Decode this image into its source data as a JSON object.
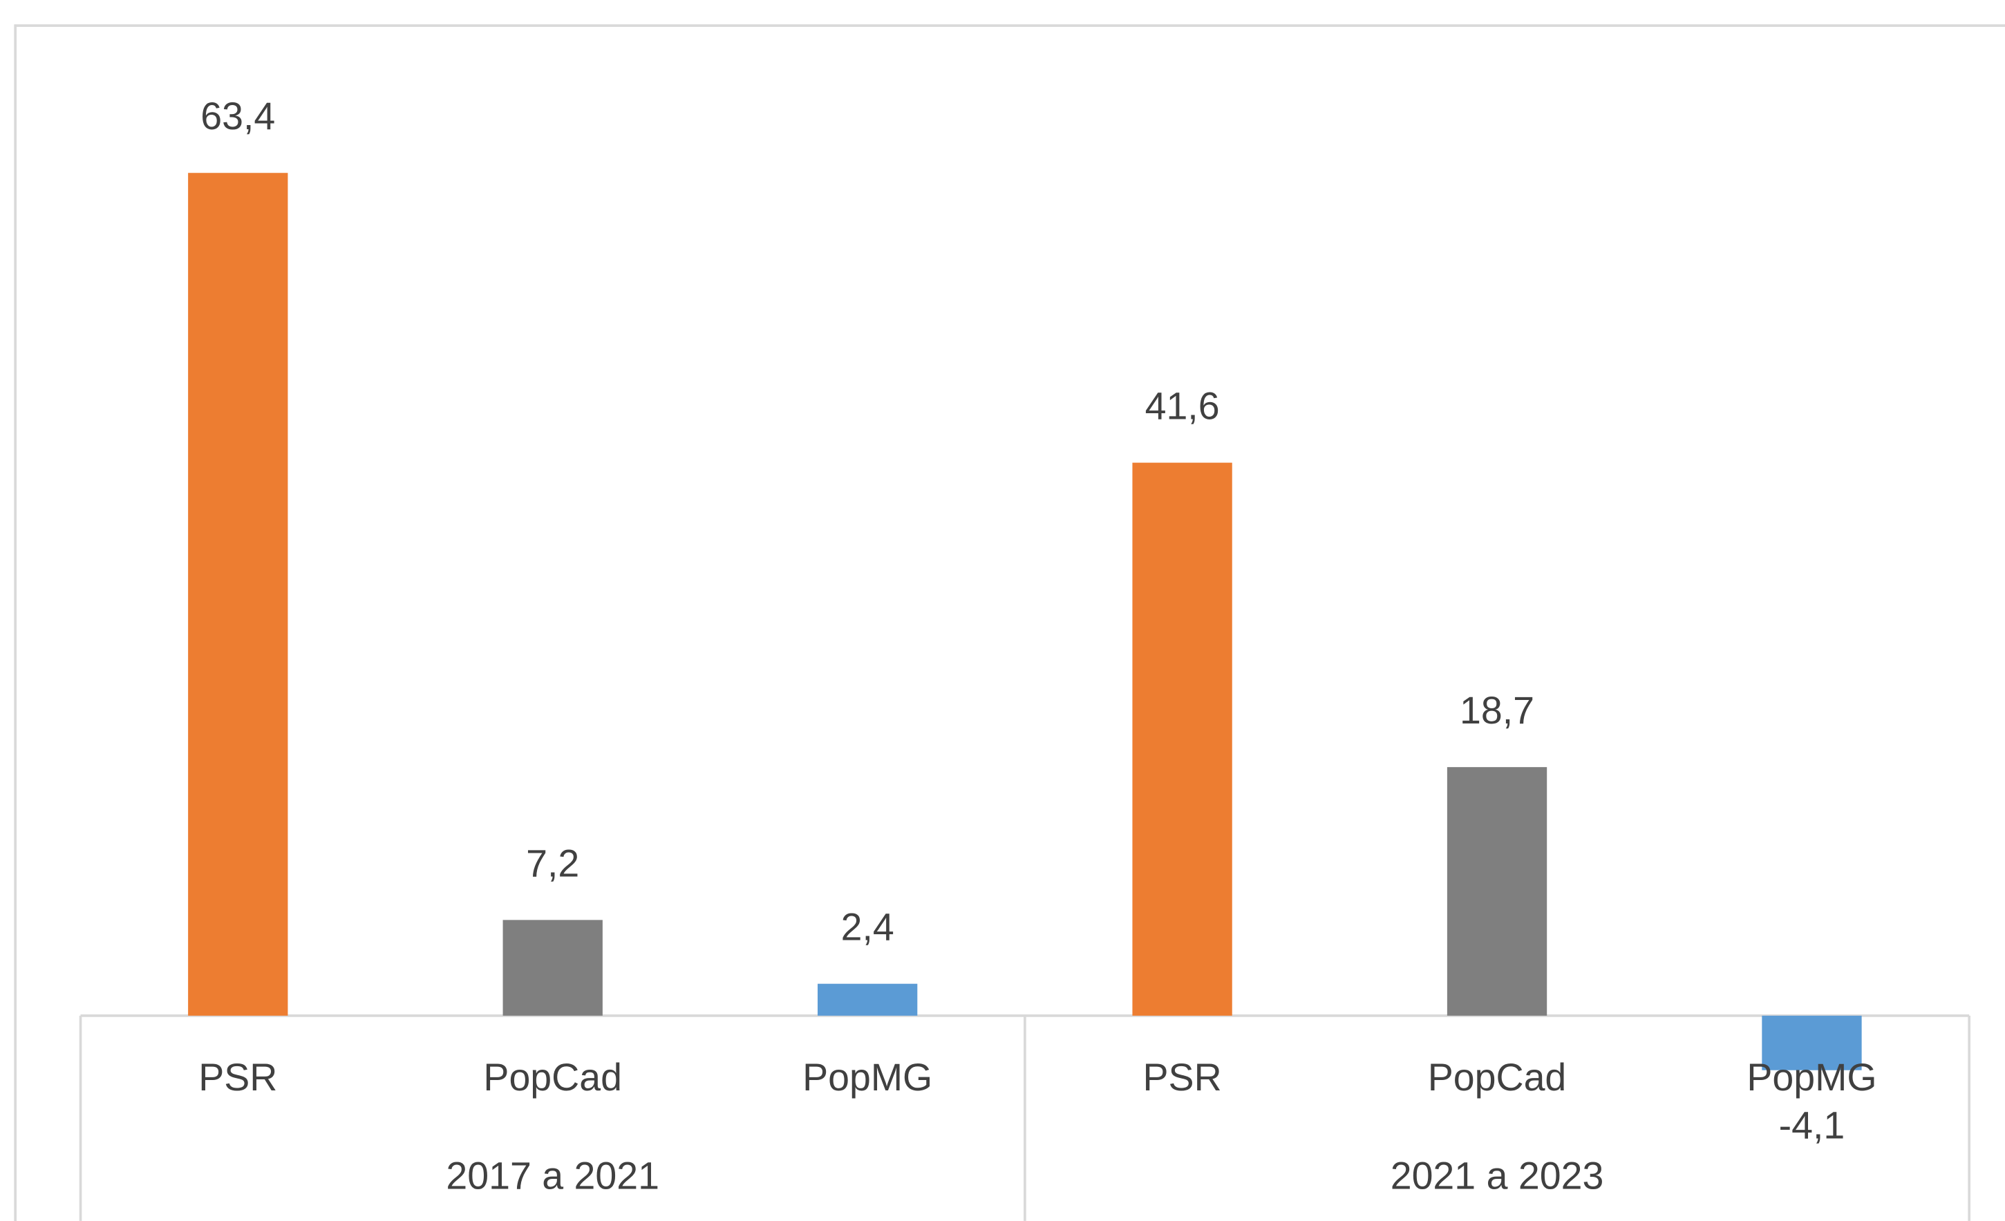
{
  "chart_data": {
    "type": "bar",
    "groups": [
      "2017 a 2021",
      "2021 a 2023"
    ],
    "categories": [
      "PSR",
      "PopCad",
      "PopMG",
      "PSR",
      "PopCad",
      "PopMG"
    ],
    "values": [
      63.4,
      7.2,
      2.4,
      41.6,
      18.7,
      -4.1
    ],
    "value_labels": [
      "63,4",
      "7,2",
      "2,4",
      "41,6",
      "18,7",
      "-4,1"
    ],
    "colors": [
      "#ED7D31",
      "#7F7F7F",
      "#5B9BD5",
      "#ED7D31",
      "#7F7F7F",
      "#5B9BD5"
    ],
    "ylim": [
      -14,
      74
    ]
  }
}
